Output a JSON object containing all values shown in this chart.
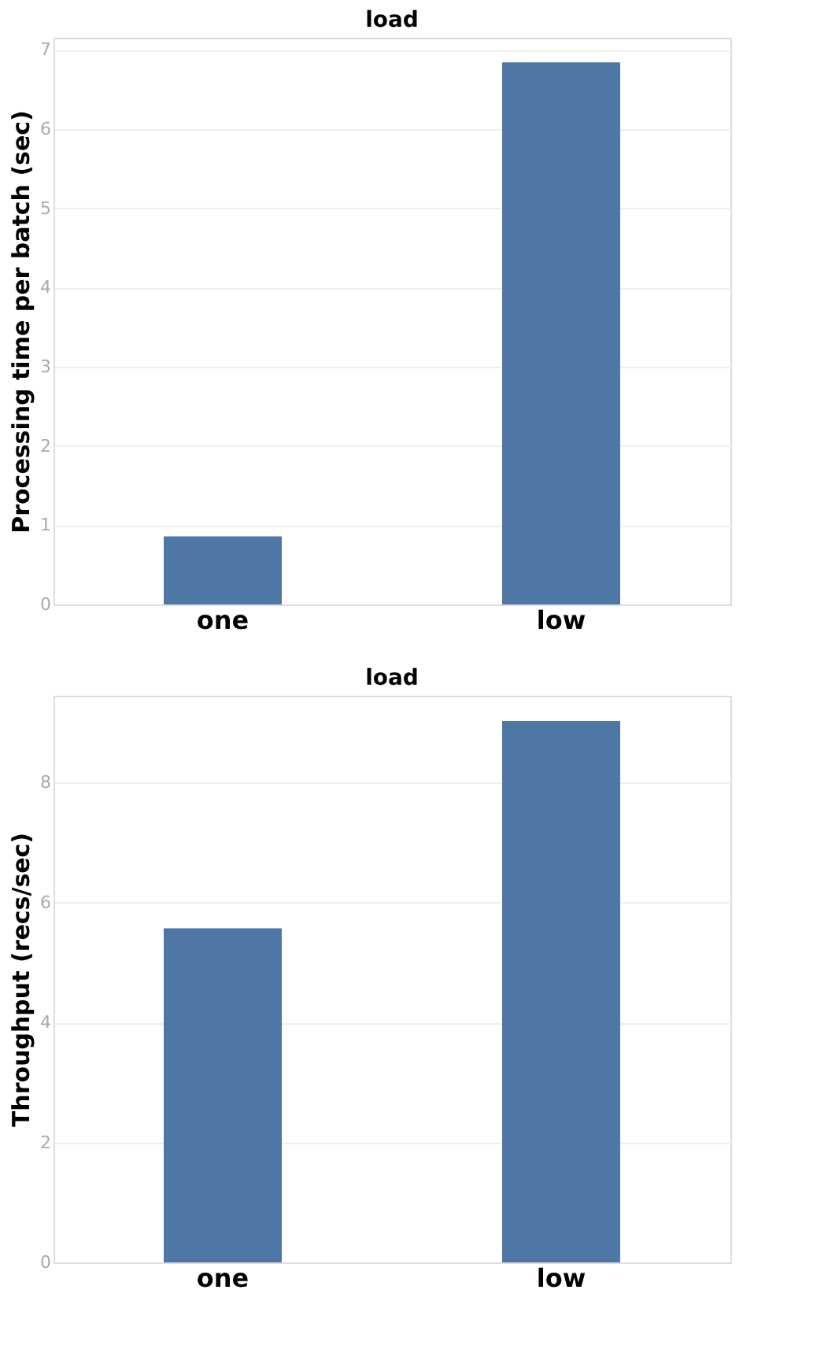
{
  "chart_data": [
    {
      "type": "bar",
      "title": "load",
      "ylabel": "Processing time per batch (sec)",
      "categories": [
        "one",
        "low"
      ],
      "values": [
        0.86,
        6.84
      ],
      "color": "#4e77a5",
      "ylim": [
        0,
        7.15
      ],
      "yticks": [
        0,
        1,
        2,
        3,
        4,
        5,
        6,
        7
      ],
      "grid": "y"
    },
    {
      "type": "bar",
      "title": "load",
      "ylabel": "Throughput (recs/sec)",
      "categories": [
        "one",
        "low"
      ],
      "values": [
        5.57,
        9.03
      ],
      "color": "#4e77a5",
      "ylim": [
        0,
        9.45
      ],
      "yticks": [
        0,
        2,
        4,
        6,
        8
      ],
      "grid": "y"
    }
  ]
}
